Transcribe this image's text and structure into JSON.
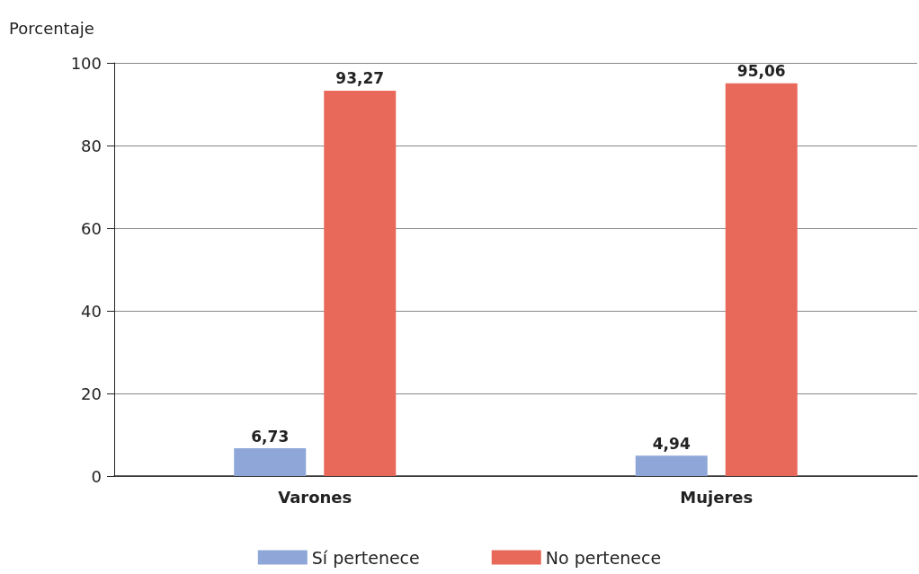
{
  "chart_data": {
    "type": "bar",
    "ylabel": "Porcentaje",
    "categories": [
      "Varones",
      "Mujeres"
    ],
    "series": [
      {
        "name": "Sí pertenece",
        "color": "#8ea7d8",
        "values": [
          6.73,
          4.94
        ],
        "value_labels": [
          "6,73",
          "4,94"
        ]
      },
      {
        "name": "No pertenece",
        "color": "#e8695a",
        "values": [
          93.27,
          95.06
        ],
        "value_labels": [
          "93,27",
          "95,06"
        ]
      }
    ],
    "ylim": [
      0,
      100
    ],
    "yticks": [
      0,
      20,
      40,
      60,
      80,
      100
    ],
    "grid": "y",
    "legend": "bottom"
  }
}
